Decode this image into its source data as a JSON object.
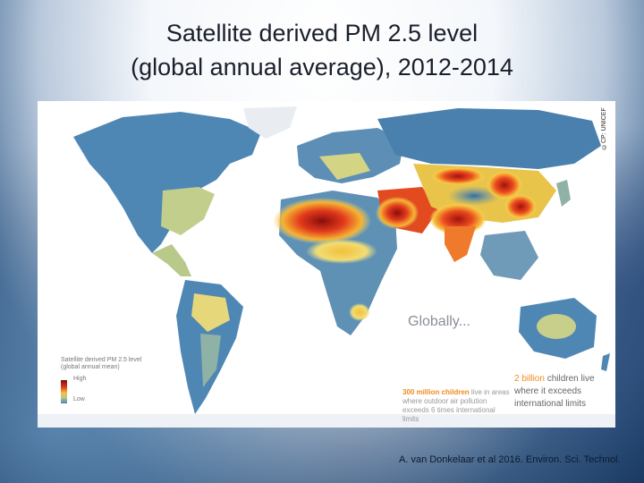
{
  "title": {
    "line1": "Satellite derived PM 2.5 level",
    "line2": "(global annual average), 2012-2014"
  },
  "map": {
    "credit": "©CP: UNICEF",
    "globally_heading": "Globally...",
    "legend": {
      "title": "Satellite derived PM 2.5 level (global annual mean)",
      "high": "High",
      "low": "Low"
    },
    "stat_300m": {
      "highlight": "300 million children",
      "text": "live in areas where outdoor air pollution exceeds 6 times international limits"
    },
    "stat_2b": {
      "highlight": "2 billion",
      "text": "children live where it exceeds international limits"
    }
  },
  "citation": "A. van Donkelaar et al 2016.  Environ. Sci. Technol.",
  "colors": {
    "pollution_high": "#7a0a0a",
    "pollution_mid": "#f6c23a",
    "pollution_low": "#4f87b4",
    "highlight_orange": "#f08a1e"
  }
}
